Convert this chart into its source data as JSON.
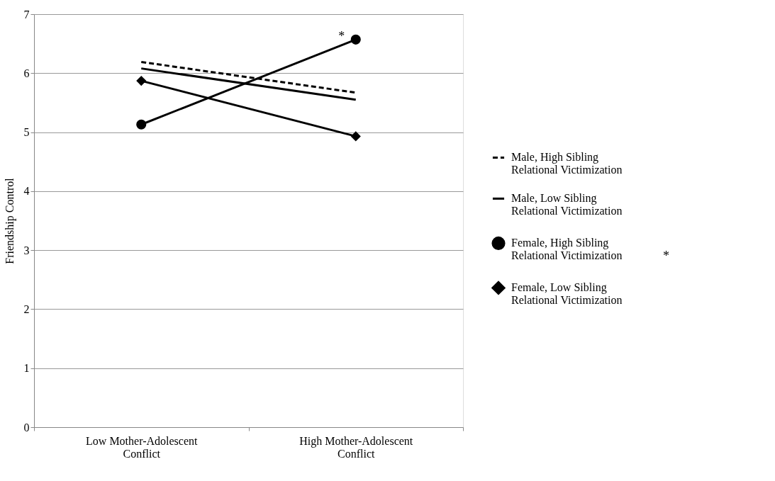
{
  "chart_data": {
    "type": "line",
    "ylabel": "Friendship Control",
    "categories": [
      "Low Mother-Adolescent Conflict",
      "High Mother-Adolescent Conflict"
    ],
    "series": [
      {
        "name": "Male, High Sibling Relational Victimization",
        "color": "#000000",
        "values": [
          6.19,
          5.67
        ],
        "line_style": "dashed",
        "marker": "none"
      },
      {
        "name": "Male, Low Sibling Relational Victimization",
        "color": "#000000",
        "values": [
          6.08,
          5.55
        ],
        "line_style": "solid",
        "marker": "none"
      },
      {
        "name": "Female, High Sibling Relational Victimization",
        "color": "#000000",
        "values": [
          5.13,
          6.57
        ],
        "line_style": "solid",
        "marker": "circle"
      },
      {
        "name": "Female, Low Sibling Relational Victimization",
        "color": "#000000",
        "values": [
          5.87,
          4.93
        ],
        "line_style": "solid",
        "marker": "diamond"
      }
    ],
    "ylim": [
      0,
      7
    ],
    "yticks": [
      0,
      1,
      2,
      3,
      4,
      5,
      6,
      7
    ],
    "grid": "y",
    "legend": "right",
    "annotations": [
      {
        "text": "*",
        "x": "High Mother-Adolescent Conflict",
        "y": 6.57
      },
      "*"
    ]
  }
}
